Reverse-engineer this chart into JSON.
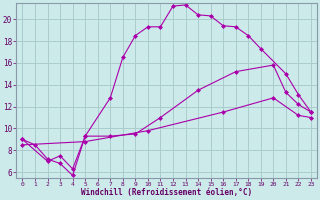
{
  "title": "",
  "xlabel": "Windchill (Refroidissement éolien,°C)",
  "ylabel": "",
  "background_color": "#cceaea",
  "line_color": "#aa00aa",
  "grid_color": "#aacccc",
  "xlim": [
    -0.5,
    23.5
  ],
  "ylim": [
    5.5,
    21.5
  ],
  "yticks": [
    6,
    8,
    10,
    12,
    14,
    16,
    18,
    20
  ],
  "xticks": [
    0,
    1,
    2,
    3,
    4,
    5,
    6,
    7,
    8,
    9,
    10,
    11,
    12,
    13,
    14,
    15,
    16,
    17,
    18,
    19,
    20,
    21,
    22,
    23
  ],
  "series": [
    {
      "x": [
        0,
        1,
        2,
        3,
        4,
        5,
        7,
        8,
        9,
        10,
        11,
        12,
        13,
        14,
        15,
        16,
        17,
        18,
        19,
        21,
        22,
        23
      ],
      "y": [
        9.0,
        8.5,
        7.2,
        6.8,
        5.7,
        9.3,
        12.8,
        16.5,
        18.5,
        19.3,
        19.3,
        21.2,
        21.3,
        20.4,
        20.3,
        19.4,
        19.3,
        18.5,
        17.3,
        15.0,
        13.1,
        11.5
      ]
    },
    {
      "x": [
        0,
        2,
        3,
        4,
        5,
        7,
        9,
        11,
        14,
        17,
        20,
        21,
        22,
        23
      ],
      "y": [
        9.0,
        7.0,
        7.5,
        6.3,
        9.3,
        9.3,
        9.5,
        11.0,
        13.5,
        15.2,
        15.8,
        13.3,
        12.2,
        11.5
      ]
    },
    {
      "x": [
        0,
        5,
        10,
        16,
        20,
        22,
        23
      ],
      "y": [
        8.5,
        8.8,
        9.8,
        11.5,
        12.8,
        11.2,
        11.0
      ]
    }
  ]
}
